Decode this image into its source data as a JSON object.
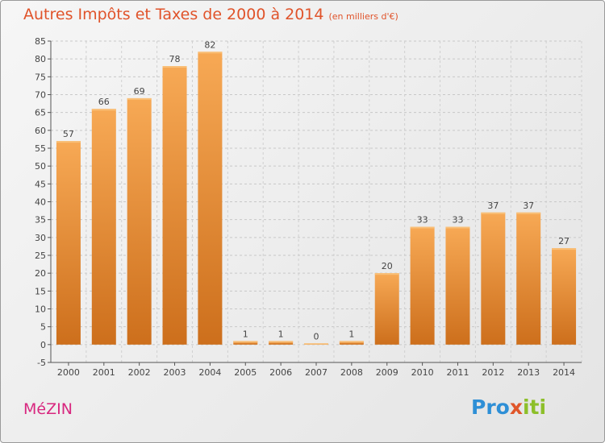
{
  "header": {
    "title": "Autres Impôts et Taxes de 2000 à 2014",
    "subtitle": "(en milliers d'€)"
  },
  "footer": {
    "city": "MéZIN",
    "logo_parts": [
      "Pro",
      "x",
      "iti"
    ]
  },
  "colors": {
    "bar_top": "#f7a955",
    "bar_bottom": "#cd6f1c",
    "title": "#e0532a",
    "city": "#d8277f"
  },
  "chart_data": {
    "type": "bar",
    "title": "Autres Impôts et Taxes de 2000 à 2014",
    "subtitle": "(en milliers d'€)",
    "categories": [
      "2000",
      "2001",
      "2002",
      "2003",
      "2004",
      "2005",
      "2006",
      "2007",
      "2008",
      "2009",
      "2010",
      "2011",
      "2012",
      "2013",
      "2014"
    ],
    "values": [
      57,
      66,
      69,
      78,
      82,
      1,
      1,
      0,
      1,
      20,
      33,
      33,
      37,
      37,
      27
    ],
    "ylim": [
      -5,
      85
    ],
    "yticks": [
      -5,
      0,
      5,
      10,
      15,
      20,
      25,
      30,
      35,
      40,
      45,
      50,
      55,
      60,
      65,
      70,
      75,
      80,
      85
    ],
    "grid": true,
    "legend": "none"
  }
}
